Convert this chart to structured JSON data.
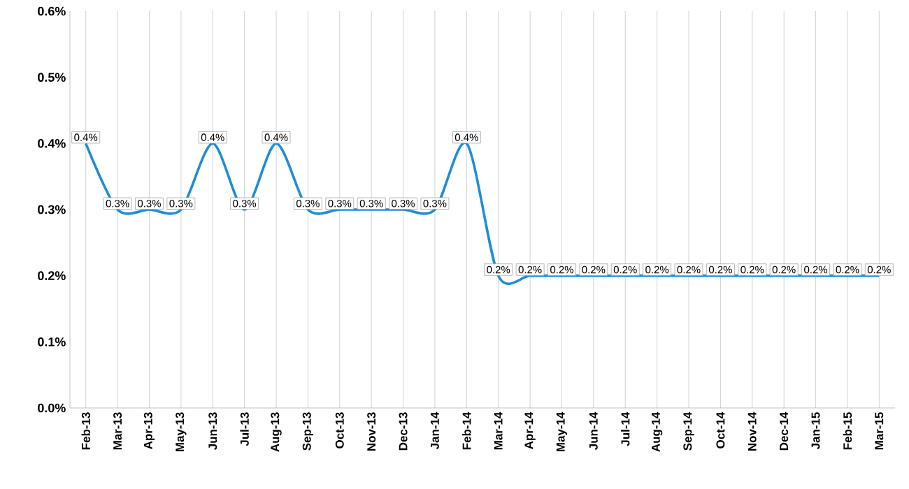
{
  "chart_data": {
    "type": "line",
    "categories": [
      "Feb-13",
      "Mar-13",
      "Apr-13",
      "May-13",
      "Jun-13",
      "Jul-13",
      "Aug-13",
      "Sep-13",
      "Oct-13",
      "Nov-13",
      "Dec-13",
      "Jan-14",
      "Feb-14",
      "Mar-14",
      "Apr-14",
      "May-14",
      "Jun-14",
      "Jul-14",
      "Aug-14",
      "Sep-14",
      "Oct-14",
      "Nov-14",
      "Dec-14",
      "Jan-15",
      "Feb-15",
      "Mar-15"
    ],
    "series": [
      {
        "color": "#1f8dd6",
        "values": [
          0.4,
          0.3,
          0.3,
          0.3,
          0.4,
          0.3,
          0.4,
          0.3,
          0.3,
          0.3,
          0.3,
          0.3,
          0.4,
          0.2,
          0.2,
          0.2,
          0.2,
          0.2,
          0.2,
          0.2,
          0.2,
          0.2,
          0.2,
          0.2,
          0.2,
          0.2
        ],
        "value_labels": [
          "0.4%",
          "0.3%",
          "0.3%",
          "0.3%",
          "0.4%",
          "0.3%",
          "0.4%",
          "0.3%",
          "0.3%",
          "0.3%",
          "0.3%",
          "0.3%",
          "0.4%",
          "0.2%",
          "0.2%",
          "0.2%",
          "0.2%",
          "0.2%",
          "0.2%",
          "0.2%",
          "0.2%",
          "0.2%",
          "0.2%",
          "0.2%",
          "0.2%",
          "0.2%"
        ]
      }
    ],
    "ylim": [
      0,
      0.6
    ],
    "yticks": [
      {
        "value": 0,
        "label": "0.0%"
      },
      {
        "value": 0.1,
        "label": "0.1%"
      },
      {
        "value": 0.2,
        "label": "0.2%"
      },
      {
        "value": 0.3,
        "label": "0.3%"
      },
      {
        "value": 0.4,
        "label": "0.4%"
      },
      {
        "value": 0.5,
        "label": "0.5%"
      },
      {
        "value": 0.6,
        "label": "0.6%"
      }
    ],
    "grid": "x",
    "marker": "none",
    "line_style": "solid"
  }
}
